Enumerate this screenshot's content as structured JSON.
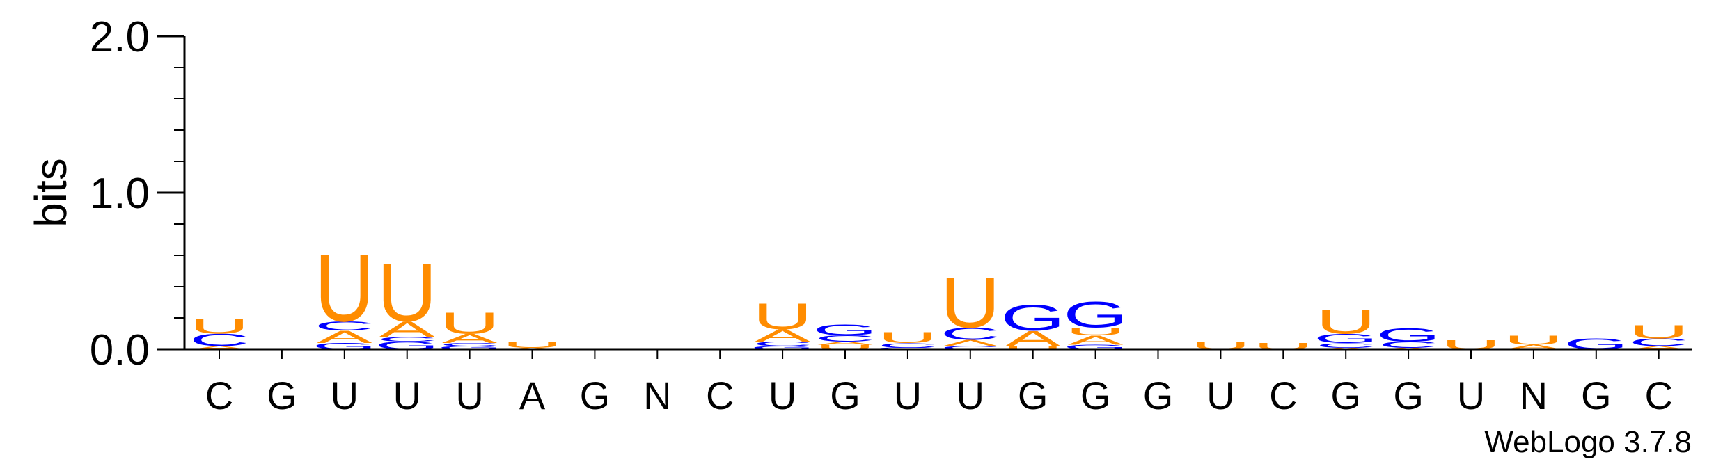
{
  "chart_data": {
    "type": "sequence-logo",
    "ylabel": "bits",
    "ylim": [
      0,
      2.0
    ],
    "yticks": [
      "0.0",
      "1.0",
      "2.0"
    ],
    "yticks_values": [
      0.0,
      1.0,
      2.0
    ],
    "positions": [
      "C",
      "G",
      "U",
      "U",
      "U",
      "A",
      "G",
      "N",
      "C",
      "U",
      "G",
      "U",
      "U",
      "G",
      "G",
      "G",
      "U",
      "C",
      "G",
      "G",
      "U",
      "N",
      "G",
      "C"
    ],
    "colors": {
      "U": "#ff8c00",
      "A": "#ff8c00",
      "C": "#0000ff",
      "G": "#0000ff"
    },
    "stacks": [
      [
        [
          "A",
          0.02
        ],
        [
          "C",
          0.08
        ],
        [
          "U",
          0.1
        ]
      ],
      [],
      [
        [
          "G",
          0.04
        ],
        [
          "A",
          0.08
        ],
        [
          "C",
          0.06
        ],
        [
          "U",
          0.44
        ]
      ],
      [
        [
          "G",
          0.05
        ],
        [
          "C",
          0.03
        ],
        [
          "A",
          0.1
        ],
        [
          "U",
          0.38
        ]
      ],
      [
        [
          "G",
          0.02
        ],
        [
          "C",
          0.02
        ],
        [
          "A",
          0.06
        ],
        [
          "U",
          0.14
        ]
      ],
      [
        [
          "A",
          0.01
        ],
        [
          "U",
          0.04
        ]
      ],
      [],
      [],
      [],
      [
        [
          "G",
          0.02
        ],
        [
          "C",
          0.03
        ],
        [
          "A",
          0.08
        ],
        [
          "U",
          0.17
        ]
      ],
      [
        [
          "U",
          0.03
        ],
        [
          "A",
          0.02
        ],
        [
          "C",
          0.04
        ],
        [
          "G",
          0.07
        ]
      ],
      [
        [
          "G",
          0.01
        ],
        [
          "C",
          0.03
        ],
        [
          "U",
          0.07
        ]
      ],
      [
        [
          "C",
          0.02
        ],
        [
          "A",
          0.04
        ],
        [
          "C",
          0.08
        ],
        [
          "U",
          0.33
        ]
      ],
      [
        [
          "U",
          0.02
        ],
        [
          "A",
          0.1
        ],
        [
          "G",
          0.17
        ]
      ],
      [
        [
          "G",
          0.03
        ],
        [
          "A",
          0.06
        ],
        [
          "U",
          0.05
        ],
        [
          "G",
          0.17
        ]
      ],
      [],
      [
        [
          "U",
          0.05
        ]
      ],
      [
        [
          "U",
          0.04
        ]
      ],
      [
        [
          "A",
          0.01
        ],
        [
          "C",
          0.03
        ],
        [
          "G",
          0.06
        ],
        [
          "U",
          0.16
        ]
      ],
      [
        [
          "A",
          0.01
        ],
        [
          "C",
          0.04
        ],
        [
          "G",
          0.09
        ]
      ],
      [
        [
          "U",
          0.06
        ]
      ],
      [
        [
          "A",
          0.03
        ],
        [
          "U",
          0.06
        ]
      ],
      [
        [
          "G",
          0.07
        ]
      ],
      [
        [
          "A",
          0.02
        ],
        [
          "C",
          0.05
        ],
        [
          "U",
          0.09
        ]
      ]
    ]
  },
  "credit": "WebLogo 3.7.8"
}
